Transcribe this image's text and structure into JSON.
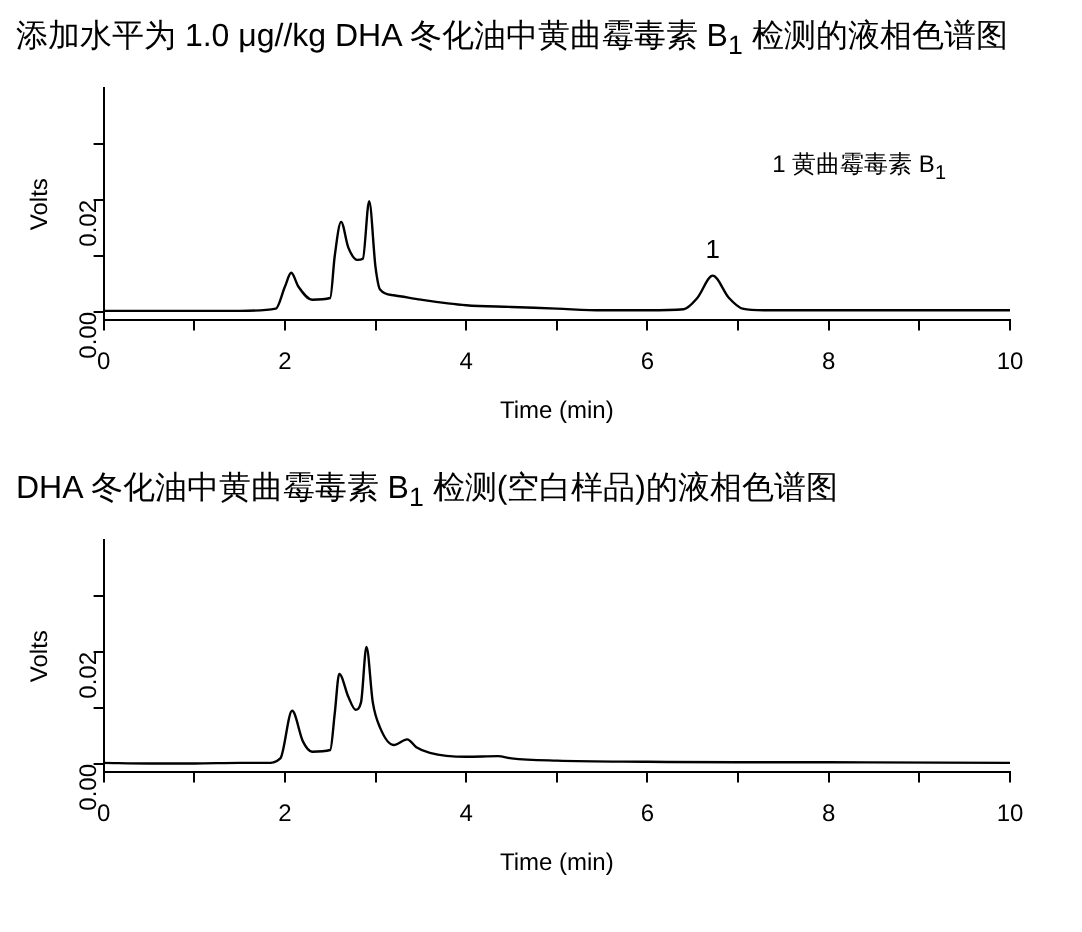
{
  "chart_data": [
    {
      "type": "line",
      "title": "添加水平为 1.0 μg//kg DHA 冬化油中黄曲霉毒素 B$_{1}$ 检测的液相色谱图",
      "xlabel": "Time (min)",
      "ylabel": "Volts",
      "marker": "none",
      "line_style": "solid",
      "xlim": [
        0,
        10
      ],
      "xticks": [
        0,
        {
          "value": 1,
          "label": null
        },
        2,
        {
          "value": 3,
          "label": null
        },
        4,
        {
          "value": 5,
          "label": null
        },
        6,
        {
          "value": 7,
          "label": null
        },
        8,
        {
          "value": 9,
          "label": null
        },
        10
      ],
      "ylim": [
        -0.0015,
        0.04
      ],
      "yticks": [
        {
          "value": 0,
          "label": "0.00"
        },
        {
          "value": 0.01,
          "label": null
        },
        {
          "value": 0.02,
          "label": "0.02"
        },
        {
          "value": 0.03,
          "label": null
        }
      ],
      "annotations": [
        {
          "text": "1",
          "x": 6.72,
          "y": 0.0065
        },
        "1 黄曲霉毒素 B$_{1}$"
      ],
      "series": [
        {
          "color": "#000000",
          "x": [
            0,
            0.5,
            1,
            1.5,
            1.9,
            2.0,
            2.07,
            2.15,
            2.3,
            2.5,
            2.55,
            2.62,
            2.7,
            2.8,
            2.86,
            2.93,
            3.0,
            3.05,
            3.2,
            3.5,
            4,
            4.5,
            5,
            5.5,
            6,
            6.4,
            6.55,
            6.72,
            6.9,
            7.05,
            7.3,
            8,
            9,
            10
          ],
          "values": [
            0.0002,
            0.0002,
            0.0002,
            0.0002,
            0.0006,
            0.0045,
            0.007,
            0.0045,
            0.0022,
            0.0025,
            0.01,
            0.0161,
            0.0115,
            0.0093,
            0.0095,
            0.0198,
            0.008,
            0.004,
            0.003,
            0.0022,
            0.0012,
            0.0009,
            0.0006,
            0.0003,
            0.0003,
            0.0005,
            0.0025,
            0.0065,
            0.0025,
            0.0006,
            0.0003,
            0.0003,
            0.0003,
            0.0003
          ]
        }
      ]
    },
    {
      "type": "line",
      "title": "DHA 冬化油中黄曲霉毒素 B$_{1}$ 检测(空白样品)的液相色谱图",
      "xlabel": "Time (min)",
      "ylabel": "Volts",
      "marker": "none",
      "line_style": "solid",
      "xlim": [
        0,
        10
      ],
      "xticks": [
        0,
        {
          "value": 1,
          "label": null
        },
        2,
        {
          "value": 3,
          "label": null
        },
        4,
        {
          "value": 5,
          "label": null
        },
        6,
        {
          "value": 7,
          "label": null
        },
        8,
        {
          "value": 9,
          "label": null
        },
        10
      ],
      "ylim": [
        -0.0015,
        0.04
      ],
      "yticks": [
        {
          "value": 0,
          "label": "0.00"
        },
        {
          "value": 0.01,
          "label": null
        },
        {
          "value": 0.02,
          "label": "0.02"
        },
        {
          "value": 0.03,
          "label": null
        }
      ],
      "series": [
        {
          "color": "#000000",
          "x": [
            0,
            0.5,
            1,
            1.5,
            1.8,
            1.95,
            2.08,
            2.2,
            2.3,
            2.5,
            2.55,
            2.6,
            2.7,
            2.78,
            2.84,
            2.9,
            2.97,
            3.05,
            3.2,
            3.35,
            3.45,
            3.6,
            4,
            4.35,
            4.5,
            5,
            6,
            7,
            8,
            10
          ],
          "values": [
            0.0002,
            0.0001,
            0.0001,
            0.0002,
            0.0002,
            0.001,
            0.0095,
            0.004,
            0.0022,
            0.0025,
            0.009,
            0.0161,
            0.012,
            0.0097,
            0.011,
            0.0209,
            0.011,
            0.0065,
            0.0034,
            0.0044,
            0.003,
            0.002,
            0.0013,
            0.0014,
            0.001,
            0.0006,
            0.0004,
            0.0003,
            0.0003,
            0.0002
          ]
        }
      ]
    }
  ]
}
